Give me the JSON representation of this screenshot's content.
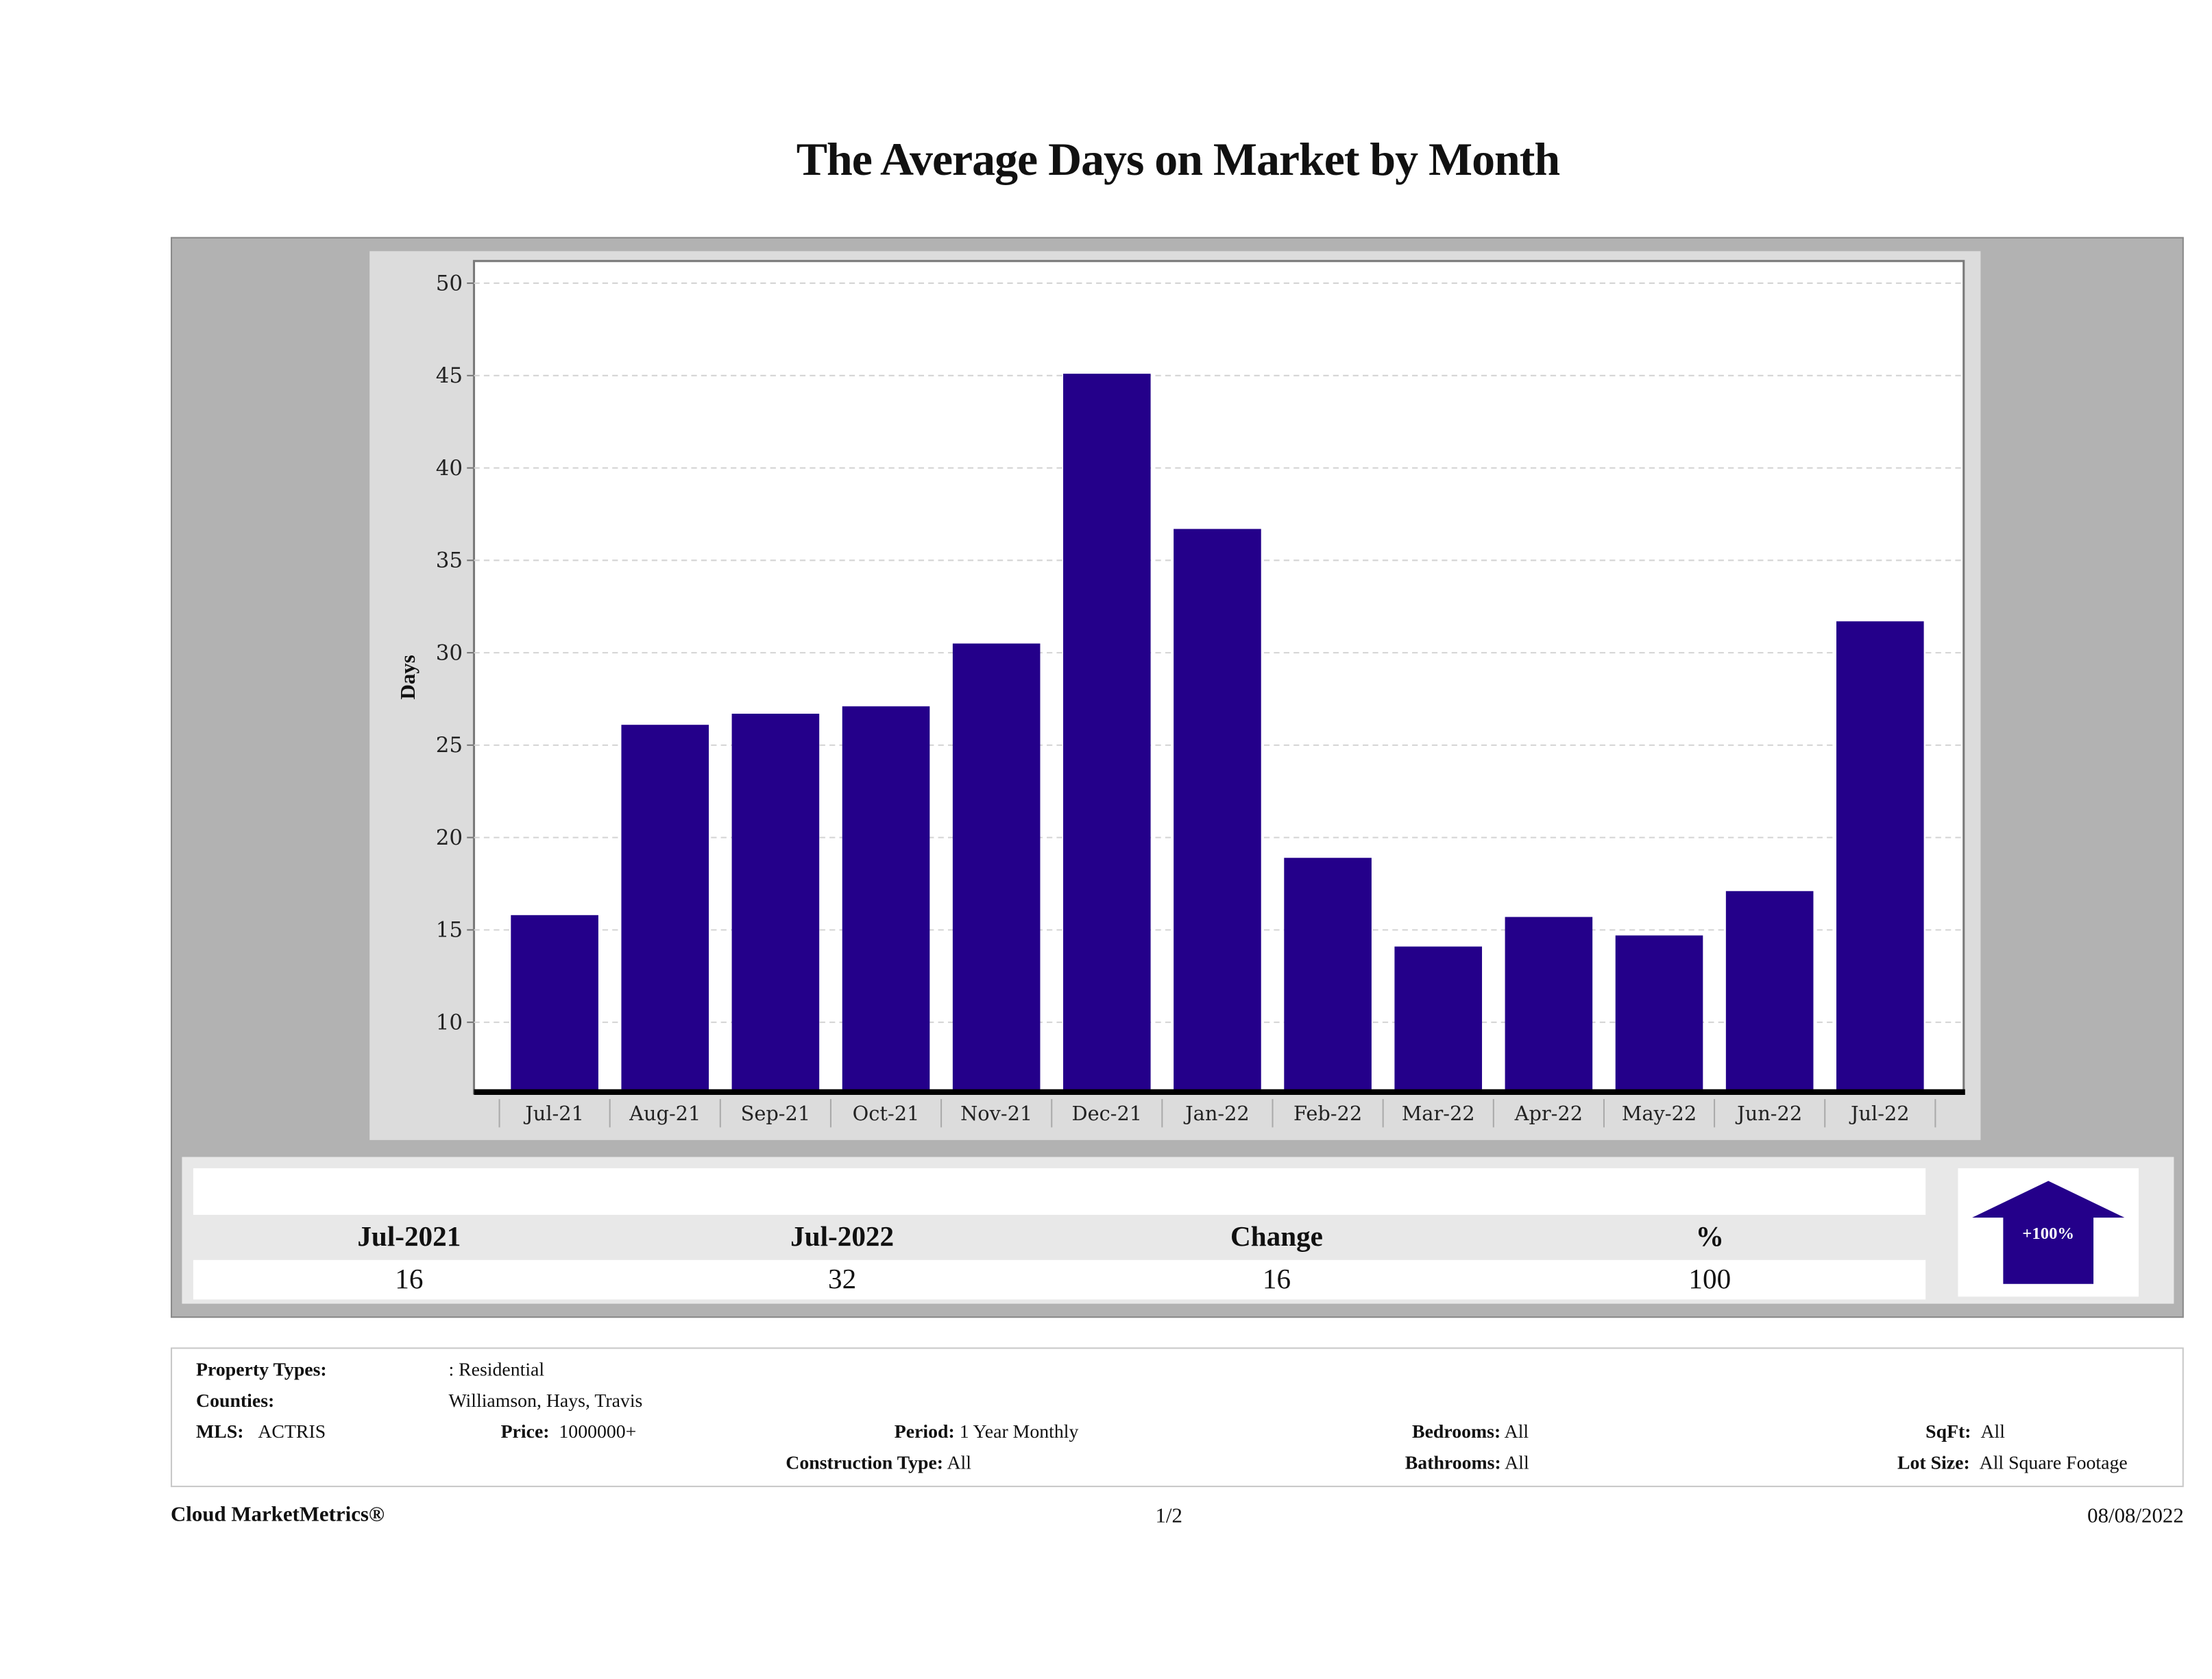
{
  "page": {
    "title": "The Average Days on Market by Month"
  },
  "chart_data": {
    "type": "bar",
    "title": "The Average Days on Market by Month",
    "xlabel": "",
    "ylabel": "Days",
    "categories": [
      "Jul-21",
      "Aug-21",
      "Sep-21",
      "Oct-21",
      "Nov-21",
      "Dec-21",
      "Jan-22",
      "Feb-22",
      "Mar-22",
      "Apr-22",
      "May-22",
      "Jun-22",
      "Jul-22"
    ],
    "values": [
      15.8,
      26.1,
      26.7,
      27.1,
      30.5,
      45.1,
      36.7,
      18.9,
      14.1,
      15.7,
      14.7,
      17.1,
      31.7
    ],
    "ylim": [
      6.3,
      51.2
    ],
    "yticks": [
      10,
      15,
      20,
      25,
      30,
      35,
      40,
      45,
      50
    ],
    "grid": true,
    "bar_color": "#24008a",
    "legend": "none"
  },
  "summary": {
    "headers": [
      "Jul-2021",
      "Jul-2022",
      "Change",
      "%"
    ],
    "values": [
      "16",
      "32",
      "16",
      "100"
    ],
    "badge": {
      "label": "+100%",
      "icon": "up-arrow-icon",
      "color": "#24008a"
    }
  },
  "criteria": {
    "property_types": {
      "label": "Property Types:",
      "value": ": Residential"
    },
    "counties": {
      "label": "Counties:",
      "value": "Williamson, Hays, Travis"
    },
    "mls": {
      "label": "MLS:",
      "value": "ACTRIS"
    },
    "price": {
      "label": "Price:",
      "value": "1000000+"
    },
    "period": {
      "label": "Period:",
      "value": "1 Year Monthly"
    },
    "construction_type": {
      "label": "Construction Type:",
      "value": "All"
    },
    "bedrooms": {
      "label": "Bedrooms:",
      "value": "All"
    },
    "bathrooms": {
      "label": "Bathrooms:",
      "value": "All"
    },
    "sqft": {
      "label": "SqFt:",
      "value": "All"
    },
    "lot_size": {
      "label": "Lot Size:",
      "value": "All Square Footage"
    }
  },
  "footer": {
    "brand": "Cloud MarketMetrics®",
    "page": "1/2",
    "date": "08/08/2022"
  }
}
